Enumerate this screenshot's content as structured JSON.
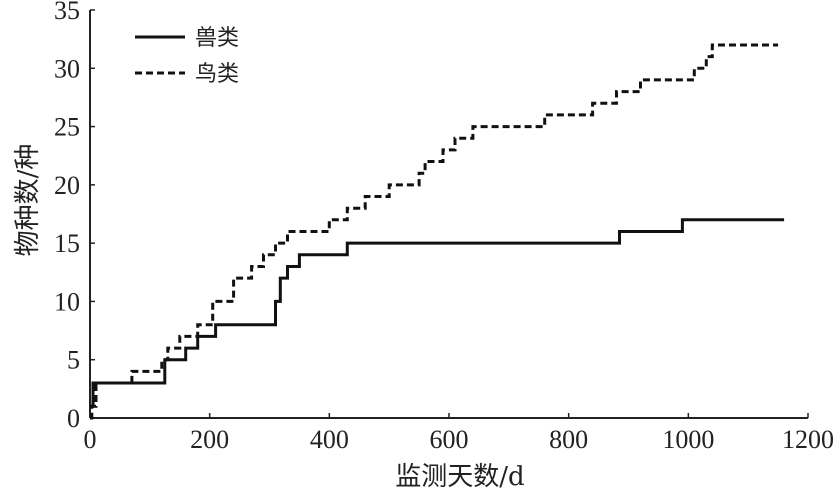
{
  "chart_data": {
    "type": "line",
    "xlabel": "监测天数/d",
    "ylabel": "物种数/种",
    "xlim": [
      0,
      1200
    ],
    "ylim": [
      0,
      35
    ],
    "xticks": [
      0,
      200,
      400,
      600,
      800,
      1000,
      1200
    ],
    "yticks": [
      0,
      5,
      10,
      15,
      20,
      25,
      30,
      35
    ],
    "grid": false,
    "legend_position": "top-left",
    "series": [
      {
        "name": "兽类",
        "style": "solid",
        "color": "#111111",
        "x": [
          0,
          5,
          5,
          125,
          125,
          160,
          160,
          180,
          180,
          210,
          210,
          310,
          310,
          318,
          318,
          330,
          330,
          350,
          350,
          370,
          370,
          430,
          430,
          885,
          885,
          990,
          990,
          1160
        ],
        "y": [
          1,
          1,
          3,
          3,
          5,
          5,
          6,
          6,
          7,
          7,
          8,
          8,
          10,
          10,
          12,
          12,
          13,
          13,
          14,
          14,
          14,
          14,
          15,
          15,
          16,
          16,
          17,
          17
        ]
      },
      {
        "name": "鸟类",
        "style": "dashed",
        "color": "#111111",
        "x": [
          0,
          3,
          3,
          10,
          10,
          70,
          70,
          120,
          120,
          130,
          130,
          150,
          150,
          180,
          180,
          205,
          205,
          240,
          240,
          270,
          270,
          290,
          290,
          310,
          310,
          330,
          330,
          400,
          400,
          430,
          430,
          460,
          460,
          500,
          500,
          550,
          550,
          560,
          560,
          590,
          590,
          610,
          610,
          640,
          640,
          660,
          660,
          760,
          760,
          840,
          840,
          880,
          880,
          920,
          920,
          1010,
          1010,
          1030,
          1030,
          1040,
          1040,
          1150
        ],
        "y": [
          0,
          0,
          1,
          1,
          3,
          3,
          4,
          4,
          5,
          5,
          6,
          6,
          7,
          7,
          8,
          8,
          10,
          10,
          12,
          12,
          13,
          13,
          14,
          14,
          15,
          15,
          16,
          16,
          17,
          17,
          18,
          18,
          19,
          19,
          20,
          20,
          21,
          21,
          22,
          22,
          23,
          23,
          24,
          24,
          25,
          25,
          25,
          25,
          26,
          26,
          27,
          27,
          28,
          28,
          29,
          29,
          30,
          30,
          31,
          31,
          32,
          32
        ]
      }
    ]
  }
}
